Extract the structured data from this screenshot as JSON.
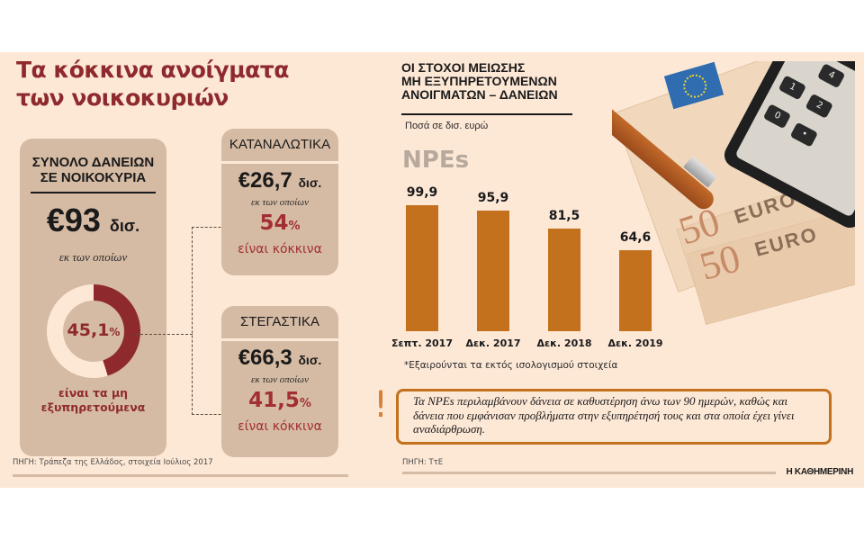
{
  "title": "Τα κόκκινα ανοίγματα των νοικοκυριών",
  "title_lines": [
    "Τα κόκκινα ανοίγματα",
    "των νοικοκυριών"
  ],
  "colors": {
    "background": "#fde8d6",
    "card": "#d6bba4",
    "accent_red": "#8e2a2e",
    "bar": "#c4711d",
    "npes_gray": "#b7a99d",
    "donut_light": "#fde8d6"
  },
  "total": {
    "heading_lines": [
      "ΣΥΝΟΛΟ ΔΑΝΕΙΩΝ",
      "ΣΕ ΝΟΙΚΟΚΥΡΙΑ"
    ],
    "amount": "€93",
    "unit": "δισ.",
    "of_which": "εκ των οποίων",
    "npl_value": "45,1",
    "npl_pct_sign": "%",
    "npl_percent": 45.1,
    "caption_lines": [
      "είναι τα μη",
      "εξυπηρετούμενα"
    ]
  },
  "consumer": {
    "heading": "ΚΑΤΑΝΑΛΩΤΙΚΑ",
    "amount": "€26,7",
    "unit": "δισ.",
    "of_which": "εκ των οποίων",
    "pct_value": "54",
    "pct_sign": "%",
    "caption": "είναι κόκκινα"
  },
  "mortgage": {
    "heading": "ΣΤΕΓΑΣΤΙΚΑ",
    "amount": "€66,3",
    "unit": "δισ.",
    "of_which": "εκ των οποίων",
    "pct_value": "41,5",
    "pct_sign": "%",
    "caption": "είναι κόκκινα"
  },
  "chart_data": {
    "type": "bar",
    "title": "ΟΙ ΣΤΟΧΟΙ ΜΕΙΩΣΗΣ ΜΗ ΕΞΥΠΗΡΕΤΟΥΜΕΝΩΝ ΑΝΟΙΓΜΑΤΩΝ – ΔΑΝΕΙΩΝ",
    "title_lines": [
      "ΟΙ ΣΤΟΧΟΙ ΜΕΙΩΣΗΣ",
      "ΜΗ ΕΞΥΠΗΡΕΤΟΥΜΕΝΩΝ",
      "ΑΝΟΙΓΜΑΤΩΝ – ΔΑΝΕΙΩΝ"
    ],
    "subtitle": "Ποσά σε δισ. ευρώ",
    "series_label": "NPEs",
    "categories": [
      "Σεπτ. 2017",
      "Δεκ. 2017",
      "Δεκ. 2018",
      "Δεκ. 2019"
    ],
    "values": [
      99.9,
      95.9,
      81.5,
      64.6
    ],
    "value_labels": [
      "99,9",
      "95,9",
      "81,5",
      "64,6"
    ],
    "xlabel": "",
    "ylabel": "",
    "grid": false,
    "legend": "none",
    "footnote": "*Εξαιρούνται τα εκτός ισολογισμού στοιχεία"
  },
  "note": {
    "icon": "exclamation-icon",
    "text": "Τα NPEs περιλαμβάνουν δάνεια σε καθυστέρηση άνω των 90 ημερών, καθώς και δάνεια που εμφάνισαν προβλήματα στην εξυπηρέτησή τους και στα οποία έχει γίνει αναδιάρθρωση."
  },
  "sources": {
    "left": "ΠΗΓΗ: Τράπεζα της Ελλάδος, στοιχεία Ιούλιος 2017",
    "right": "ΠΗΓΗ: ΤτΕ"
  },
  "brand": "Η ΚΑΘΗΜΕΡΙΝΗ",
  "photo": {
    "banknote_value": "50",
    "banknote_text": "EURO",
    "calculator_keys": [
      "4",
      "1",
      "2",
      "0",
      "•"
    ]
  }
}
